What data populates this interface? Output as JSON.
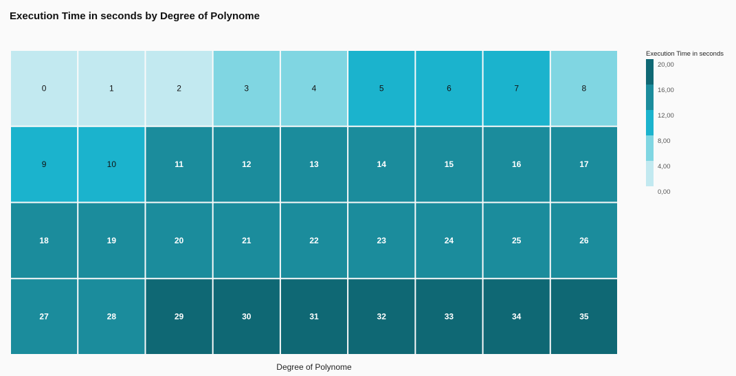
{
  "chart_data": {
    "type": "heatmap",
    "title": "Execution Time in seconds by Degree of Polynome",
    "xlabel": "Degree of Polynome",
    "ylabel": "",
    "columns": 9,
    "rows": 4,
    "cells": [
      {
        "label": "0",
        "value": 2
      },
      {
        "label": "1",
        "value": 2
      },
      {
        "label": "2",
        "value": 2
      },
      {
        "label": "3",
        "value": 6
      },
      {
        "label": "4",
        "value": 6
      },
      {
        "label": "5",
        "value": 10
      },
      {
        "label": "6",
        "value": 10
      },
      {
        "label": "7",
        "value": 10
      },
      {
        "label": "8",
        "value": 6
      },
      {
        "label": "9",
        "value": 10
      },
      {
        "label": "10",
        "value": 10
      },
      {
        "label": "11",
        "value": 14
      },
      {
        "label": "12",
        "value": 14
      },
      {
        "label": "13",
        "value": 14
      },
      {
        "label": "14",
        "value": 14
      },
      {
        "label": "15",
        "value": 14
      },
      {
        "label": "16",
        "value": 14
      },
      {
        "label": "17",
        "value": 14
      },
      {
        "label": "18",
        "value": 14
      },
      {
        "label": "19",
        "value": 14
      },
      {
        "label": "20",
        "value": 14
      },
      {
        "label": "21",
        "value": 14
      },
      {
        "label": "22",
        "value": 14
      },
      {
        "label": "23",
        "value": 14
      },
      {
        "label": "24",
        "value": 14
      },
      {
        "label": "25",
        "value": 14
      },
      {
        "label": "26",
        "value": 14
      },
      {
        "label": "27",
        "value": 14
      },
      {
        "label": "28",
        "value": 14
      },
      {
        "label": "29",
        "value": 18
      },
      {
        "label": "30",
        "value": 18
      },
      {
        "label": "31",
        "value": 18
      },
      {
        "label": "32",
        "value": 18
      },
      {
        "label": "33",
        "value": 18
      },
      {
        "label": "34",
        "value": 18
      },
      {
        "label": "35",
        "value": 18
      }
    ],
    "legend": {
      "title": "Execution Time in seconds",
      "position": "right",
      "bins": [
        {
          "min": 0,
          "max": 4,
          "color": "#c2e9f0"
        },
        {
          "min": 4,
          "max": 8,
          "color": "#80d6e2"
        },
        {
          "min": 8,
          "max": 12,
          "color": "#1bb3cd"
        },
        {
          "min": 12,
          "max": 16,
          "color": "#1b8c9c"
        },
        {
          "min": 16,
          "max": 20,
          "color": "#0f6874"
        }
      ],
      "tick_labels": [
        "20,00",
        "16,00",
        "12,00",
        "8,00",
        "4,00",
        "0,00"
      ]
    },
    "label_colors": {
      "light": "#111111",
      "dark": "#ffffff"
    }
  }
}
